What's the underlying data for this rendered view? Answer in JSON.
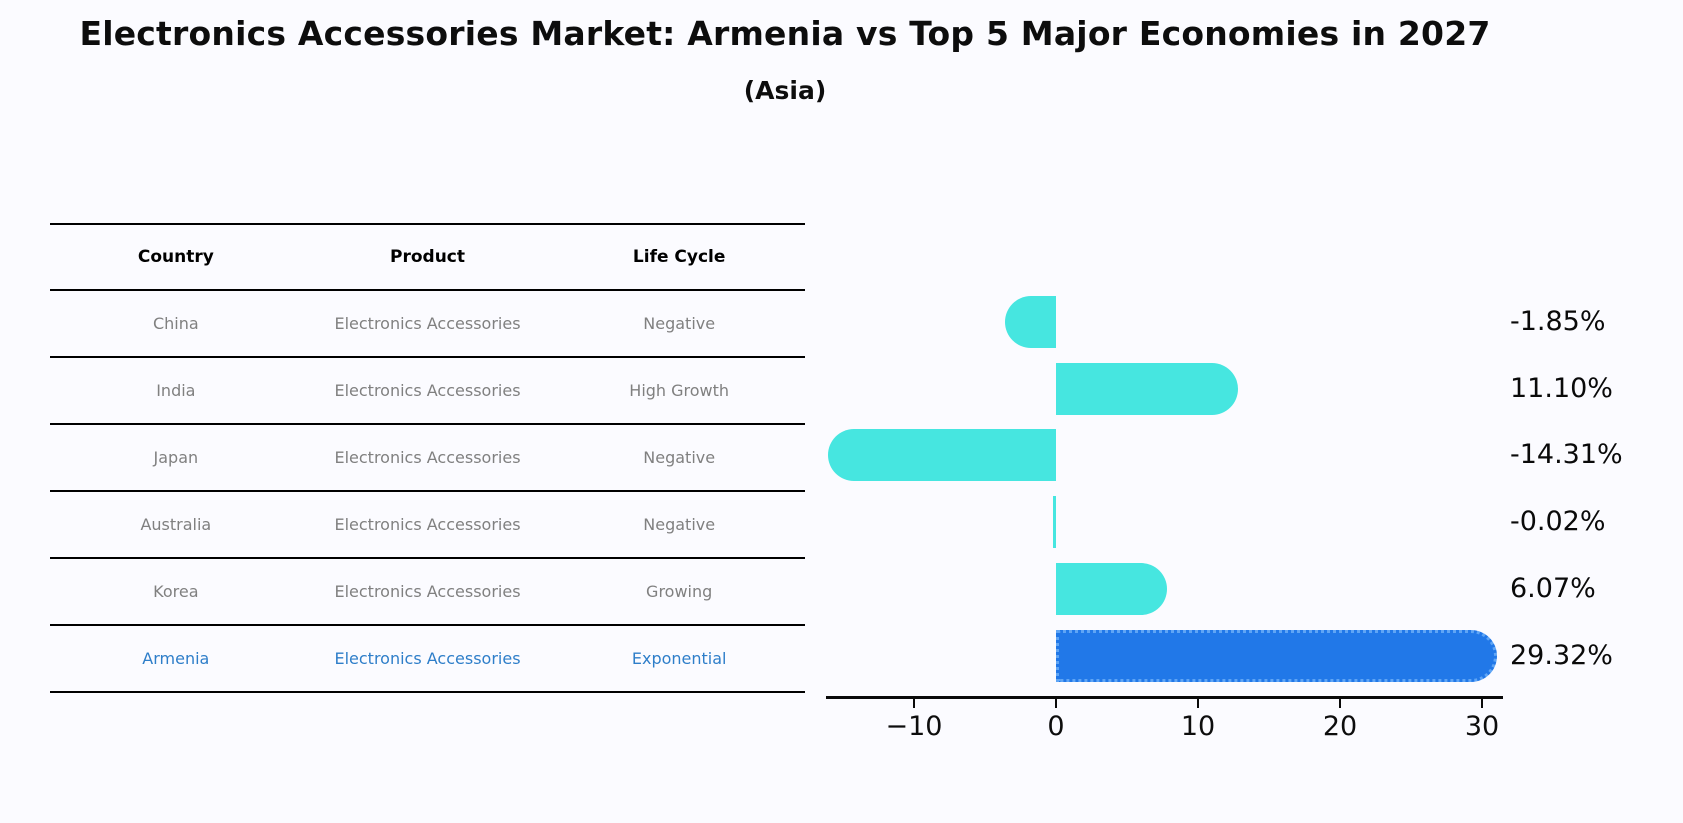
{
  "title": "Electronics Accessories Market: Armenia vs Top 5 Major Economies in 2027",
  "subtitle": "(Asia)",
  "table": {
    "headers": [
      "Country",
      "Product",
      "Life Cycle"
    ],
    "rows": [
      {
        "country": "China",
        "product": "Electronics Accessories",
        "life_cycle": "Negative",
        "highlight": false
      },
      {
        "country": "India",
        "product": "Electronics Accessories",
        "life_cycle": "High Growth",
        "highlight": false
      },
      {
        "country": "Japan",
        "product": "Electronics Accessories",
        "life_cycle": "Negative",
        "highlight": false
      },
      {
        "country": "Australia",
        "product": "Electronics Accessories",
        "life_cycle": "Negative",
        "highlight": false
      },
      {
        "country": "Korea",
        "product": "Electronics Accessories",
        "life_cycle": "Growing",
        "highlight": false
      },
      {
        "country": "Armenia",
        "product": "Electronics Accessories",
        "life_cycle": "Exponential",
        "highlight": true
      }
    ]
  },
  "chart_data": {
    "type": "bar",
    "orientation": "horizontal",
    "title": "Electronics Accessories Market: Armenia vs Top 5 Major Economies in 2027",
    "subtitle": "(Asia)",
    "categories": [
      "China",
      "India",
      "Japan",
      "Australia",
      "Korea",
      "Armenia"
    ],
    "values": [
      -1.85,
      11.1,
      -14.31,
      -0.02,
      6.07,
      29.32
    ],
    "value_labels": [
      "-1.85%",
      "11.10%",
      "-14.31%",
      "-0.02%",
      "6.07%",
      "29.32%"
    ],
    "highlight_index": 5,
    "x_ticks": [
      -10,
      0,
      10,
      20,
      30
    ],
    "x_tick_labels": [
      "−10",
      "0",
      "10",
      "20",
      "30"
    ],
    "xlim": [
      -16.2,
      31.4
    ],
    "grid": false,
    "legend": "none"
  },
  "colors": {
    "bar": "#46E6E0",
    "highlight_bar": "#2178E8",
    "highlight_bar_border": "#5FA5F5",
    "highlight_text": "#2E7EC9",
    "table_text": "#808080",
    "header_text": "#000000",
    "axis": "#0A0A0A",
    "background": "#FBFBFF"
  }
}
